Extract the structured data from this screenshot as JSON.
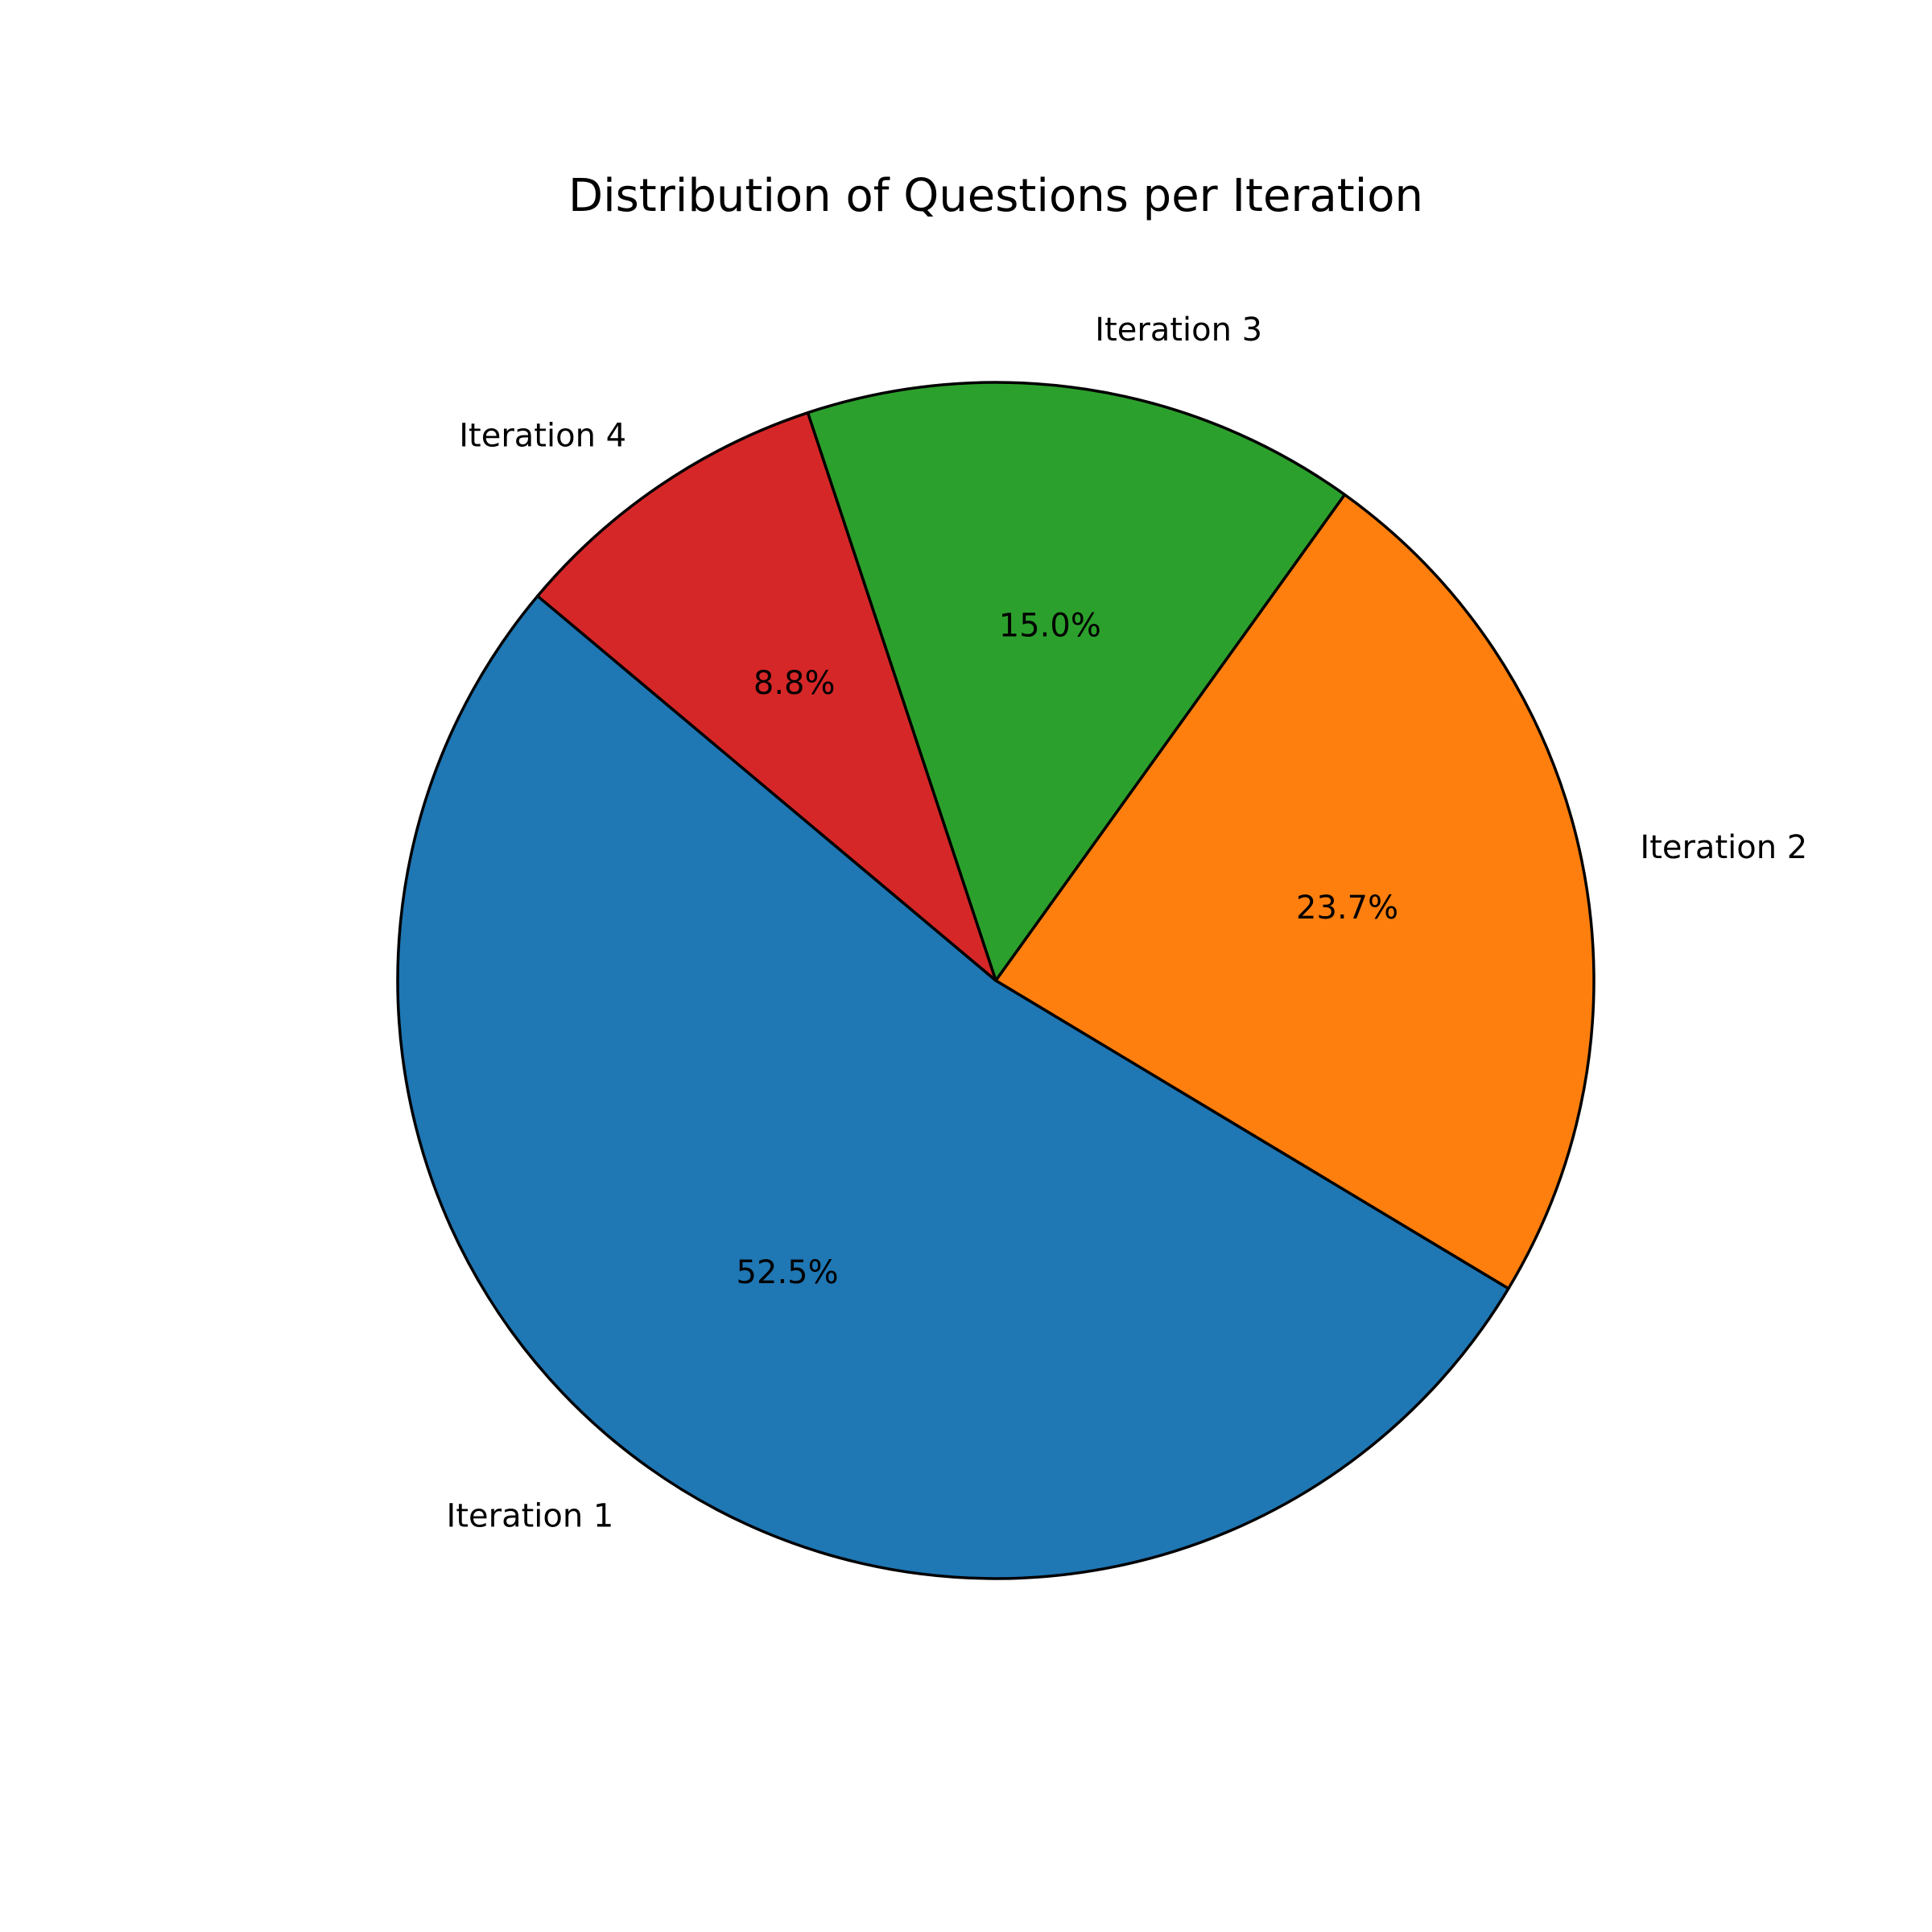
{
  "chart_data": {
    "type": "pie",
    "title": "Distribution of Questions per Iteration",
    "categories": [
      "Iteration 1",
      "Iteration 2",
      "Iteration 3",
      "Iteration 4"
    ],
    "values": [
      52.5,
      23.7,
      15.0,
      8.8
    ],
    "percent_labels": [
      "52.5%",
      "23.7%",
      "15.0%",
      "8.8%"
    ],
    "colors": [
      "#1f77b4",
      "#ff7f0e",
      "#2ca02c",
      "#d62728"
    ],
    "start_angle_deg": 140,
    "direction": "counterclockwise",
    "edge_color": "#000000",
    "legend": "none"
  }
}
